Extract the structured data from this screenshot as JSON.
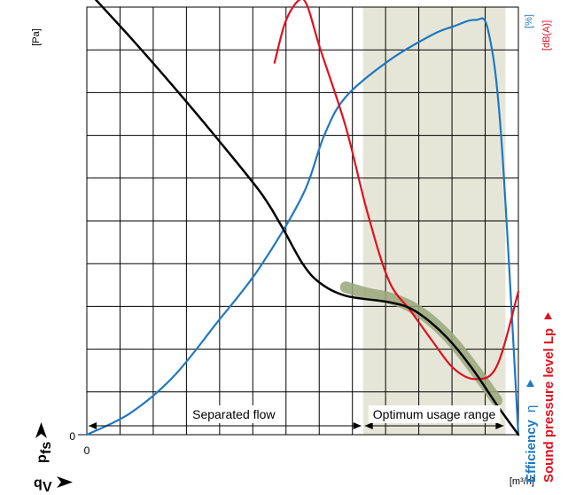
{
  "chart_data": {
    "type": "line",
    "title": "",
    "x_axis": {
      "zero_label": "0",
      "unit": "[m³/h]",
      "symbol": "q",
      "subscript": "V",
      "xlim": [
        0,
        10
      ]
    },
    "y_axis": {
      "zero_label": "0",
      "unit": "[Pa]",
      "symbol": "p",
      "subscript": "fs",
      "ylim": [
        0,
        10
      ]
    },
    "right_axes": [
      {
        "unit": "[%]",
        "name": "Efficiency",
        "symbol": "η",
        "color": "#1f78c1"
      },
      {
        "unit": "[dB(A)]",
        "name": "Sound pressure level Lp",
        "color": "#e0101e"
      }
    ],
    "grid": true,
    "grid_divisions": {
      "x": 13,
      "y": 10
    },
    "zones": [
      {
        "label": "Separated flow",
        "x_start": 0,
        "x_end": 6.4
      },
      {
        "label": "Optimum usage range",
        "x_start": 6.4,
        "x_end": 9.7,
        "shaded": true,
        "shade_color": "#e6e6d8"
      }
    ],
    "series": [
      {
        "key": "pressure",
        "color": "#000000",
        "points": [
          [
            0,
            10.4
          ],
          [
            1,
            9.3
          ],
          [
            2,
            8.15
          ],
          [
            3,
            6.95
          ],
          [
            4,
            5.7
          ],
          [
            4.5,
            4.9
          ],
          [
            5,
            4.0
          ],
          [
            5.4,
            3.55
          ],
          [
            6,
            3.25
          ],
          [
            7,
            3.1
          ],
          [
            7.5,
            2.95
          ],
          [
            8,
            2.6
          ],
          [
            8.5,
            2.1
          ],
          [
            9,
            1.45
          ],
          [
            9.5,
            0.7
          ],
          [
            10,
            0
          ]
        ]
      },
      {
        "key": "optimum-band",
        "color": "#9aa67a",
        "points": [
          [
            6,
            3.45
          ],
          [
            6.5,
            3.3
          ],
          [
            7,
            3.2
          ],
          [
            7.5,
            3.0
          ],
          [
            8,
            2.65
          ],
          [
            8.5,
            2.15
          ],
          [
            9,
            1.5
          ],
          [
            9.5,
            0.8
          ]
        ]
      },
      {
        "key": "efficiency",
        "color": "#1f78c1",
        "points": [
          [
            0,
            0
          ],
          [
            1,
            0.5
          ],
          [
            2,
            1.35
          ],
          [
            3,
            2.6
          ],
          [
            4,
            3.9
          ],
          [
            5,
            5.6
          ],
          [
            5.5,
            7.0
          ],
          [
            6,
            7.9
          ],
          [
            7,
            8.75
          ],
          [
            8,
            9.35
          ],
          [
            8.5,
            9.55
          ],
          [
            9,
            9.7
          ],
          [
            9.3,
            9.45
          ],
          [
            9.6,
            7.0
          ],
          [
            10,
            0
          ]
        ]
      },
      {
        "key": "sound",
        "color": "#e0101e",
        "points": [
          [
            4.35,
            8.7
          ],
          [
            4.6,
            9.65
          ],
          [
            4.9,
            10.15
          ],
          [
            5.1,
            10.05
          ],
          [
            5.4,
            9.05
          ],
          [
            6,
            7.2
          ],
          [
            6.5,
            5.2
          ],
          [
            7,
            3.6
          ],
          [
            7.5,
            2.9
          ],
          [
            8,
            2.2
          ],
          [
            8.5,
            1.55
          ],
          [
            9,
            1.3
          ],
          [
            9.5,
            1.6
          ],
          [
            10,
            3.35
          ]
        ]
      }
    ]
  }
}
